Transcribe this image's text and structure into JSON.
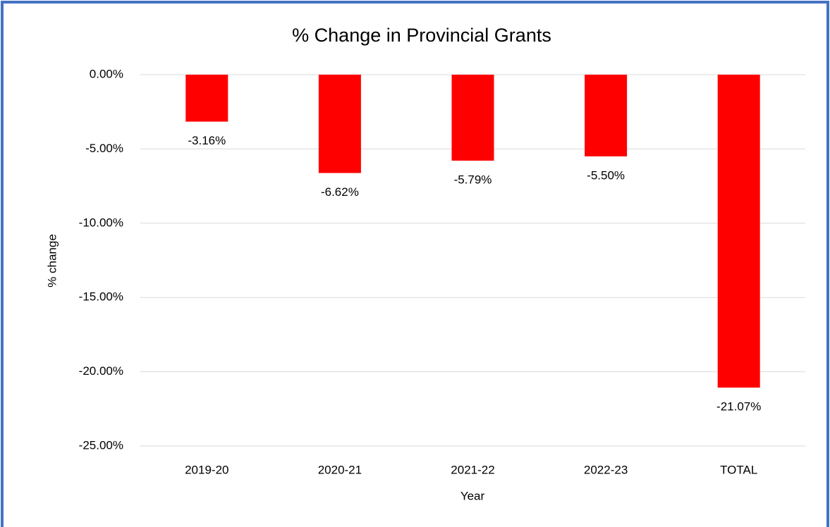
{
  "chart_data": {
    "type": "bar",
    "title": "% Change in Provincial Grants",
    "x_label": "Year",
    "y_label": "% change",
    "categories": [
      "2019-20",
      "2020-21",
      "2021-22",
      "2022-23",
      "TOTAL"
    ],
    "values": [
      -3.16,
      -6.62,
      -5.79,
      -5.5,
      -21.07
    ],
    "value_labels": [
      "-3.16%",
      "-6.62%",
      "-5.79%",
      "-5.50%",
      "-21.07%"
    ],
    "color": "#ff0000",
    "ylim": [
      -25,
      0
    ],
    "yticks": [
      {
        "value": 0,
        "label": "0.00%"
      },
      {
        "value": -5,
        "label": "-5.00%"
      },
      {
        "value": -10,
        "label": "-10.00%"
      },
      {
        "value": -15,
        "label": "-15.00%"
      },
      {
        "value": -20,
        "label": "-20.00%"
      },
      {
        "value": -25,
        "label": "-25.00%"
      }
    ],
    "grid": true
  }
}
